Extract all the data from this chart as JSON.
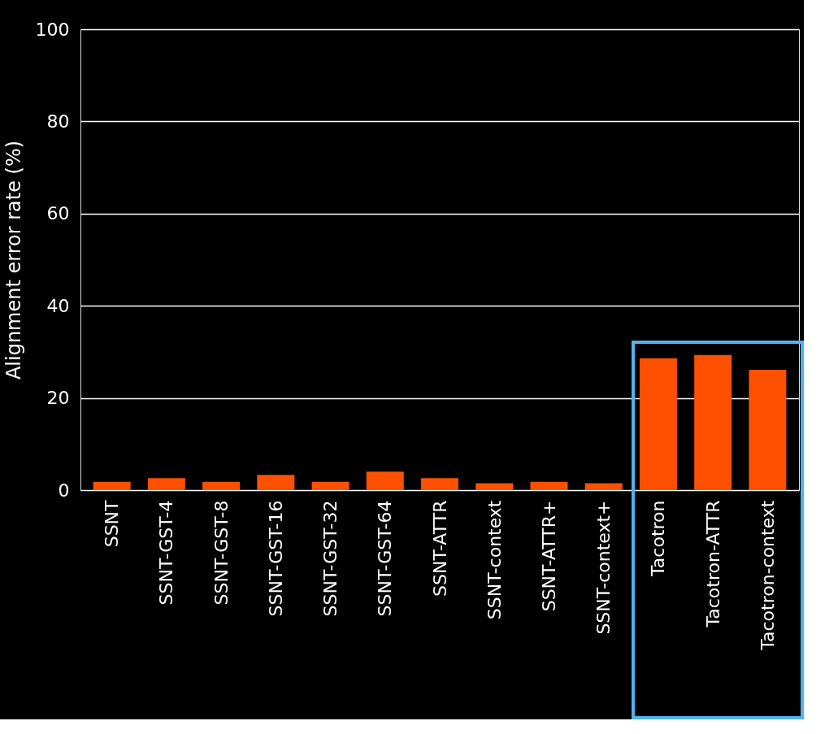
{
  "chart_data": {
    "type": "bar",
    "ylabel": "Alignment error rate (%)",
    "categories": [
      "SSNT",
      "SSNT-GST-4",
      "SSNT-GST-8",
      "SSNT-GST-16",
      "SSNT-GST-32",
      "SSNT-GST-64",
      "SSNT-ATTR",
      "SSNT-context",
      "SSNT-ATTR+",
      "SSNT-context+",
      "Tacotron",
      "Tacotron-ATTR",
      "Tacotron-context"
    ],
    "values": [
      1.8,
      2.6,
      1.8,
      3.3,
      1.8,
      4.0,
      2.6,
      1.5,
      1.8,
      1.5,
      28.6,
      29.3,
      26.1
    ],
    "color": "#ff5000",
    "ylim": [
      0,
      100
    ],
    "yticks": [
      0,
      20,
      40,
      60,
      80,
      100
    ],
    "grid": "y"
  }
}
